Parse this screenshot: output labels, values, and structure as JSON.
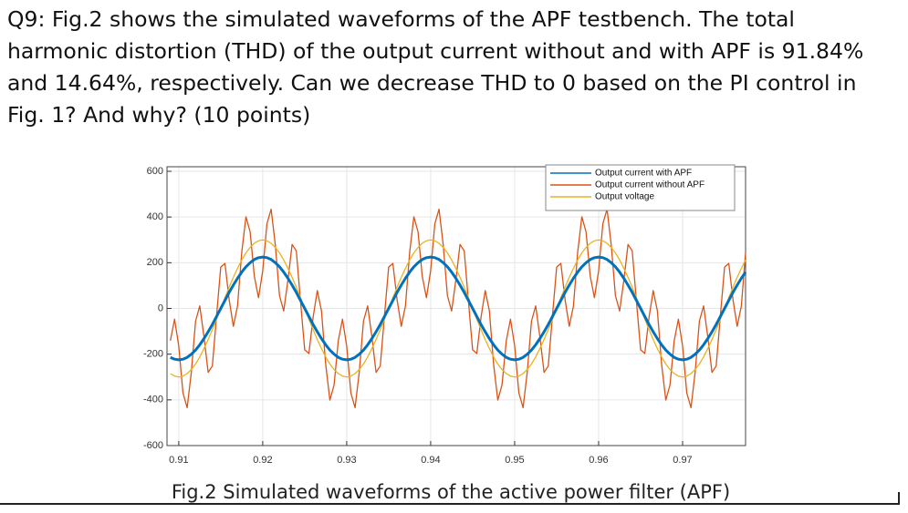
{
  "question": {
    "lines": [
      "Q9: Fig.2 shows the simulated waveforms of the APF testbench. The total",
      "harmonic distortion (THD) of the output current without and with APF is 91.84%",
      "and 14.64%, respectively. Can we decrease THD to 0 based on the PI control in",
      "Fig. 1? And why? (10 points)"
    ]
  },
  "figure": {
    "caption": "Fig.2 Simulated waveforms of the active power filter (APF)",
    "chart_data": {
      "type": "line",
      "grid": true,
      "legend": "upper right",
      "xlim": [
        0.9086,
        0.9775
      ],
      "ylim": [
        -600,
        600
      ],
      "xticks": [
        0.91,
        0.92,
        0.93,
        0.94,
        0.95,
        0.96,
        0.97
      ],
      "yticks": [
        600,
        400,
        200,
        0,
        -200,
        -400,
        -600
      ],
      "x": [
        0.909,
        0.9095,
        0.91,
        0.9105,
        0.911,
        0.9115,
        0.912,
        0.9125,
        0.913,
        0.9135,
        0.914,
        0.9145,
        0.915,
        0.9155,
        0.916,
        0.9165,
        0.917,
        0.9175,
        0.918,
        0.9185,
        0.919,
        0.9195,
        0.92,
        0.9205,
        0.921,
        0.9215,
        0.922,
        0.9225,
        0.923,
        0.9235,
        0.924,
        0.9245,
        0.925,
        0.9255,
        0.926,
        0.9265,
        0.927,
        0.9275,
        0.928,
        0.9285,
        0.929,
        0.9295,
        0.93,
        0.9305,
        0.931,
        0.9315,
        0.932,
        0.9325,
        0.933,
        0.9335,
        0.934,
        0.9345,
        0.935,
        0.9355,
        0.936,
        0.9365,
        0.937,
        0.9375,
        0.938,
        0.9385,
        0.939,
        0.9395,
        0.94,
        0.9405,
        0.941,
        0.9415,
        0.942,
        0.9425,
        0.943,
        0.9435,
        0.944,
        0.9445,
        0.945,
        0.9455,
        0.946,
        0.9465,
        0.947,
        0.9475,
        0.948,
        0.9485,
        0.949,
        0.9495,
        0.95,
        0.9505,
        0.951,
        0.9515,
        0.952,
        0.9525,
        0.953,
        0.9535,
        0.954,
        0.9545,
        0.955,
        0.9555,
        0.956,
        0.9565,
        0.957,
        0.9575,
        0.958,
        0.9585,
        0.959,
        0.9595,
        0.96,
        0.9605,
        0.961,
        0.9615,
        0.962,
        0.9625,
        0.963,
        0.9635,
        0.964,
        0.9645,
        0.965,
        0.9655,
        0.966,
        0.9665,
        0.967,
        0.9675,
        0.968,
        0.9685,
        0.969,
        0.9695,
        0.97,
        0.9705,
        0.971,
        0.9715,
        0.972,
        0.9725,
        0.973,
        0.9735,
        0.974,
        0.9745,
        0.975,
        0.9755,
        0.976,
        0.9765,
        0.977,
        0.9775
      ],
      "series": [
        {
          "name": "Output current with APF",
          "color": "#0072bd",
          "values": [
            -214,
            -222,
            -225,
            -222,
            -214,
            -200,
            -182,
            -159,
            -132,
            -102,
            -70,
            -35,
            0,
            35,
            70,
            102,
            132,
            159,
            182,
            200,
            214,
            222,
            225,
            222,
            214,
            200,
            182,
            159,
            132,
            102,
            70,
            35,
            0,
            -35,
            -70,
            -102,
            -132,
            -159,
            -182,
            -200,
            -214,
            -222,
            -225,
            -222,
            -214,
            -200,
            -182,
            -159,
            -132,
            -102,
            -70,
            -35,
            0,
            35,
            70,
            102,
            132,
            159,
            182,
            200,
            214,
            222,
            225,
            222,
            214,
            200,
            182,
            159,
            132,
            102,
            70,
            35,
            0,
            -35,
            -70,
            -102,
            -132,
            -159,
            -182,
            -200,
            -214,
            -222,
            -225,
            -222,
            -214,
            -200,
            -182,
            -159,
            -132,
            -102,
            -70,
            -35,
            0,
            35,
            70,
            102,
            132,
            159,
            182,
            200,
            214,
            222,
            225,
            222,
            214,
            200,
            182,
            159,
            132,
            102,
            70,
            35,
            0,
            -35,
            -70,
            -102,
            -132,
            -159,
            -182,
            -200,
            -214,
            -222,
            -225,
            -222,
            -214,
            -200,
            -182,
            -159,
            -132,
            -102,
            -70,
            -35,
            0,
            35,
            70,
            102,
            132,
            159
          ]
        },
        {
          "name": "Output current without APF",
          "color": "#d95319",
          "values": [
            -141,
            -47,
            -165,
            -370,
            -434,
            -278,
            -56,
            11,
            -123,
            -280,
            -252,
            -32,
            181,
            197,
            39,
            -78,
            11,
            245,
            401,
            335,
            141,
            47,
            165,
            370,
            434,
            278,
            56,
            -11,
            123,
            280,
            252,
            32,
            -181,
            -197,
            -39,
            78,
            -11,
            -245,
            -401,
            -335,
            -141,
            -47,
            -165,
            -370,
            -434,
            -278,
            -56,
            11,
            -123,
            -280,
            -252,
            -32,
            181,
            197,
            39,
            -78,
            11,
            245,
            401,
            335,
            141,
            47,
            165,
            370,
            434,
            278,
            56,
            -11,
            123,
            280,
            252,
            32,
            -181,
            -197,
            -39,
            78,
            -11,
            -245,
            -401,
            -335,
            -141,
            -47,
            -165,
            -370,
            -434,
            -278,
            -56,
            11,
            -123,
            -280,
            -252,
            -32,
            181,
            197,
            39,
            -78,
            11,
            245,
            401,
            335,
            141,
            47,
            165,
            370,
            434,
            278,
            56,
            -11,
            123,
            280,
            252,
            32,
            -181,
            -197,
            -39,
            78,
            -11,
            -245,
            -401,
            -335,
            -141,
            -47,
            -165,
            -370,
            -434,
            -278,
            -56,
            11,
            -123,
            -280,
            -252,
            -32,
            181,
            197,
            39,
            -78,
            11,
            245
          ]
        },
        {
          "name": "Output voltage",
          "color": "#edb120",
          "values": [
            -285,
            -296,
            -300,
            -296,
            -285,
            -267,
            -243,
            -212,
            -176,
            -136,
            -93,
            -47,
            0,
            47,
            93,
            136,
            176,
            212,
            243,
            267,
            285,
            296,
            300,
            296,
            285,
            267,
            243,
            212,
            176,
            136,
            93,
            47,
            0,
            -47,
            -93,
            -136,
            -176,
            -212,
            -243,
            -267,
            -285,
            -296,
            -300,
            -296,
            -285,
            -267,
            -243,
            -212,
            -176,
            -136,
            -93,
            -47,
            0,
            47,
            93,
            136,
            176,
            212,
            243,
            267,
            285,
            296,
            300,
            296,
            285,
            267,
            243,
            212,
            176,
            136,
            93,
            47,
            0,
            -47,
            -93,
            -136,
            -176,
            -212,
            -243,
            -267,
            -285,
            -296,
            -300,
            -296,
            -285,
            -267,
            -243,
            -212,
            -176,
            -136,
            -93,
            -47,
            0,
            47,
            93,
            136,
            176,
            212,
            243,
            267,
            285,
            296,
            300,
            296,
            285,
            267,
            243,
            212,
            176,
            136,
            93,
            47,
            0,
            -47,
            -93,
            -136,
            -176,
            -212,
            -243,
            -267,
            -285,
            -296,
            -300,
            -296,
            -285,
            -267,
            -243,
            -212,
            -176,
            -136,
            -93,
            -47,
            0,
            47,
            93,
            136,
            176,
            212
          ]
        }
      ]
    }
  }
}
